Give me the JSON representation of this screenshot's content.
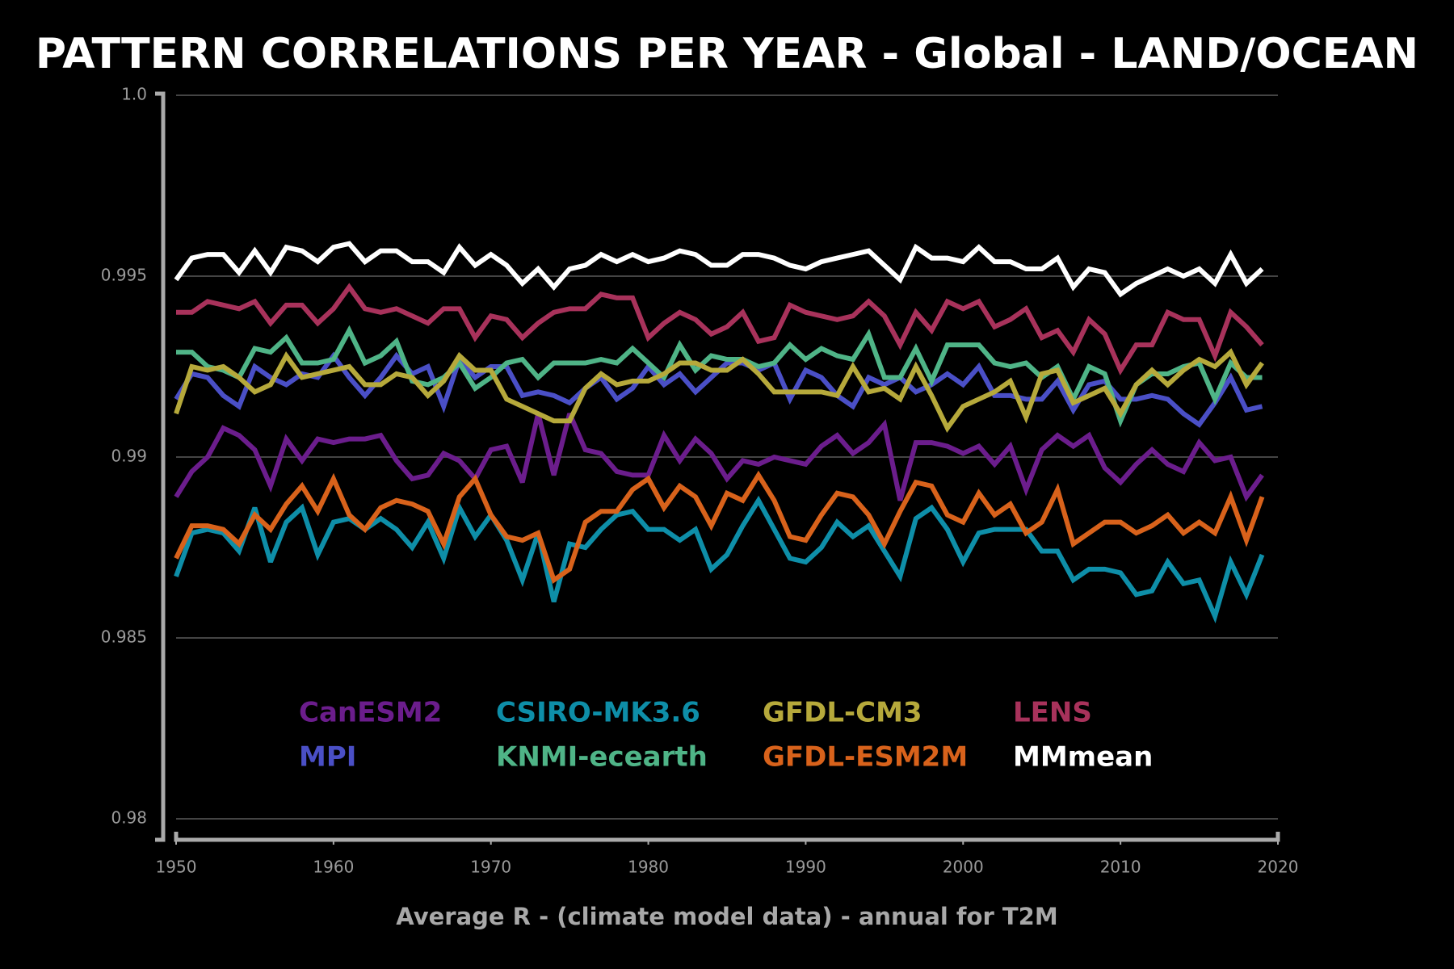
{
  "chart_data": {
    "type": "line",
    "title": "PATTERN CORRELATIONS PER YEAR - Global - LAND/OCEAN",
    "xlabel": "Average R - (climate model data) - annual for T2M",
    "x": [
      1950,
      1951,
      1952,
      1953,
      1954,
      1955,
      1956,
      1957,
      1958,
      1959,
      1960,
      1961,
      1962,
      1963,
      1964,
      1965,
      1966,
      1967,
      1968,
      1969,
      1970,
      1971,
      1972,
      1973,
      1974,
      1975,
      1976,
      1977,
      1978,
      1979,
      1980,
      1981,
      1982,
      1983,
      1984,
      1985,
      1986,
      1987,
      1988,
      1989,
      1990,
      1991,
      1992,
      1993,
      1994,
      1995,
      1996,
      1997,
      1998,
      1999,
      2000,
      2001,
      2002,
      2003,
      2004,
      2005,
      2006,
      2007,
      2008,
      2009,
      2010,
      2011,
      2012,
      2013,
      2014,
      2015,
      2016,
      2017,
      2018,
      2019
    ],
    "xlim": [
      1950,
      2020
    ],
    "xticks": [
      1950,
      1960,
      1970,
      1980,
      1990,
      2000,
      2010,
      2020
    ],
    "ylim": [
      0.98,
      1.0
    ],
    "yticks": [
      0.98,
      0.985,
      0.99,
      0.995,
      {
        "value": 1,
        "label": "1.0"
      }
    ],
    "grid": true,
    "series": [
      {
        "name": "CanESM2",
        "color": "#6b1d8c",
        "values": [
          0.9889,
          0.9896,
          0.99,
          0.9908,
          0.9906,
          0.9902,
          0.9892,
          0.9905,
          0.9899,
          0.9905,
          0.9904,
          0.9905,
          0.9905,
          0.9906,
          0.9899,
          0.9894,
          0.9895,
          0.9901,
          0.9899,
          0.9894,
          0.9902,
          0.9903,
          0.9893,
          0.9912,
          0.9895,
          0.9912,
          0.9902,
          0.9901,
          0.9896,
          0.9895,
          0.9895,
          0.9906,
          0.9899,
          0.9905,
          0.9901,
          0.9894,
          0.9899,
          0.9898,
          0.99,
          0.9899,
          0.9898,
          0.9903,
          0.9906,
          0.9901,
          0.9904,
          0.9909,
          0.9888,
          0.9904,
          0.9904,
          0.9903,
          0.9901,
          0.9903,
          0.9898,
          0.9903,
          0.9891,
          0.9902,
          0.9906,
          0.9903,
          0.9906,
          0.9897,
          0.9893,
          0.9898,
          0.9902,
          0.9898,
          0.9896,
          0.9904,
          0.9899,
          0.99,
          0.9889,
          0.9895
        ]
      },
      {
        "name": "MPI",
        "color": "#4a4fc6",
        "values": [
          0.9916,
          0.9923,
          0.9922,
          0.9917,
          0.9914,
          0.9925,
          0.9922,
          0.992,
          0.9923,
          0.9922,
          0.9928,
          0.9922,
          0.9917,
          0.9922,
          0.9928,
          0.9923,
          0.9925,
          0.9914,
          0.9927,
          0.9922,
          0.9925,
          0.9925,
          0.9917,
          0.9918,
          0.9917,
          0.9915,
          0.9919,
          0.9922,
          0.9916,
          0.9919,
          0.9925,
          0.992,
          0.9923,
          0.9918,
          0.9922,
          0.9926,
          0.9926,
          0.9924,
          0.9926,
          0.9916,
          0.9924,
          0.9922,
          0.9917,
          0.9914,
          0.9922,
          0.992,
          0.9922,
          0.9918,
          0.992,
          0.9923,
          0.992,
          0.9925,
          0.9917,
          0.9917,
          0.9916,
          0.9916,
          0.9921,
          0.9913,
          0.992,
          0.9921,
          0.9916,
          0.9916,
          0.9917,
          0.9916,
          0.9912,
          0.9909,
          0.9915,
          0.9922,
          0.9913,
          0.9914
        ]
      },
      {
        "name": "CSIRO-MK3.6",
        "color": "#0e8ea8",
        "values": [
          0.9867,
          0.9879,
          0.988,
          0.9879,
          0.9874,
          0.9886,
          0.9871,
          0.9882,
          0.9886,
          0.9873,
          0.9882,
          0.9883,
          0.988,
          0.9883,
          0.988,
          0.9875,
          0.9882,
          0.9872,
          0.9886,
          0.9878,
          0.9884,
          0.9877,
          0.9866,
          0.9879,
          0.986,
          0.9876,
          0.9875,
          0.988,
          0.9884,
          0.9885,
          0.988,
          0.988,
          0.9877,
          0.988,
          0.9869,
          0.9873,
          0.9881,
          0.9888,
          0.988,
          0.9872,
          0.9871,
          0.9875,
          0.9882,
          0.9878,
          0.9881,
          0.9874,
          0.9867,
          0.9883,
          0.9886,
          0.988,
          0.9871,
          0.9879,
          0.988,
          0.988,
          0.988,
          0.9874,
          0.9874,
          0.9866,
          0.9869,
          0.9869,
          0.9868,
          0.9862,
          0.9863,
          0.9871,
          0.9865,
          0.9866,
          0.9856,
          0.9871,
          0.9862,
          0.9873
        ]
      },
      {
        "name": "KNMI-ecearth",
        "color": "#4fb487",
        "values": [
          0.9929,
          0.9929,
          0.9925,
          0.9924,
          0.9922,
          0.993,
          0.9929,
          0.9933,
          0.9926,
          0.9926,
          0.9927,
          0.9935,
          0.9926,
          0.9928,
          0.9932,
          0.9921,
          0.992,
          0.9922,
          0.9926,
          0.9919,
          0.9922,
          0.9926,
          0.9927,
          0.9922,
          0.9926,
          0.9926,
          0.9926,
          0.9927,
          0.9926,
          0.993,
          0.9926,
          0.9922,
          0.9931,
          0.9924,
          0.9928,
          0.9927,
          0.9927,
          0.9925,
          0.9926,
          0.9931,
          0.9927,
          0.993,
          0.9928,
          0.9927,
          0.9934,
          0.9922,
          0.9922,
          0.993,
          0.9921,
          0.9931,
          0.9931,
          0.9931,
          0.9926,
          0.9925,
          0.9926,
          0.9922,
          0.9925,
          0.9916,
          0.9925,
          0.9923,
          0.991,
          0.992,
          0.9923,
          0.9923,
          0.9925,
          0.9926,
          0.9916,
          0.9926,
          0.9922,
          0.9922
        ]
      },
      {
        "name": "GFDL-CM3",
        "color": "#b6a93b",
        "values": [
          0.9912,
          0.9925,
          0.9924,
          0.9925,
          0.9922,
          0.9918,
          0.992,
          0.9928,
          0.9922,
          0.9923,
          0.9924,
          0.9925,
          0.992,
          0.992,
          0.9923,
          0.9922,
          0.9917,
          0.9921,
          0.9928,
          0.9924,
          0.9924,
          0.9916,
          0.9914,
          0.9912,
          0.991,
          0.991,
          0.9919,
          0.9923,
          0.992,
          0.9921,
          0.9921,
          0.9923,
          0.9926,
          0.9926,
          0.9924,
          0.9924,
          0.9927,
          0.9923,
          0.9918,
          0.9918,
          0.9918,
          0.9918,
          0.9917,
          0.9925,
          0.9918,
          0.9919,
          0.9916,
          0.9925,
          0.9917,
          0.9908,
          0.9914,
          0.9916,
          0.9918,
          0.9921,
          0.9911,
          0.9923,
          0.9924,
          0.9915,
          0.9917,
          0.9919,
          0.9912,
          0.992,
          0.9924,
          0.992,
          0.9924,
          0.9927,
          0.9925,
          0.9929,
          0.992,
          0.9926
        ]
      },
      {
        "name": "GFDL-ESM2M",
        "color": "#d8621b",
        "values": [
          0.9872,
          0.9881,
          0.9881,
          0.988,
          0.9876,
          0.9884,
          0.988,
          0.9887,
          0.9892,
          0.9885,
          0.9894,
          0.9884,
          0.988,
          0.9886,
          0.9888,
          0.9887,
          0.9885,
          0.9876,
          0.9889,
          0.9894,
          0.9884,
          0.9878,
          0.9877,
          0.9879,
          0.9866,
          0.9869,
          0.9882,
          0.9885,
          0.9885,
          0.9891,
          0.9894,
          0.9886,
          0.9892,
          0.9889,
          0.9881,
          0.989,
          0.9888,
          0.9895,
          0.9888,
          0.9878,
          0.9877,
          0.9884,
          0.989,
          0.9889,
          0.9884,
          0.9876,
          0.9885,
          0.9893,
          0.9892,
          0.9884,
          0.9882,
          0.989,
          0.9884,
          0.9887,
          0.9879,
          0.9882,
          0.9891,
          0.9876,
          0.9879,
          0.9882,
          0.9882,
          0.9879,
          0.9881,
          0.9884,
          0.9879,
          0.9882,
          0.9879,
          0.9889,
          0.9877,
          0.9889
        ]
      },
      {
        "name": "LENS",
        "color": "#a8325b",
        "values": [
          0.994,
          0.994,
          0.9943,
          0.9942,
          0.9941,
          0.9943,
          0.9937,
          0.9942,
          0.9942,
          0.9937,
          0.9941,
          0.9947,
          0.9941,
          0.994,
          0.9941,
          0.9939,
          0.9937,
          0.9941,
          0.9941,
          0.9933,
          0.9939,
          0.9938,
          0.9933,
          0.9937,
          0.994,
          0.9941,
          0.9941,
          0.9945,
          0.9944,
          0.9944,
          0.9933,
          0.9937,
          0.994,
          0.9938,
          0.9934,
          0.9936,
          0.994,
          0.9932,
          0.9933,
          0.9942,
          0.994,
          0.9939,
          0.9938,
          0.9939,
          0.9943,
          0.9939,
          0.9931,
          0.994,
          0.9935,
          0.9943,
          0.9941,
          0.9943,
          0.9936,
          0.9938,
          0.9941,
          0.9933,
          0.9935,
          0.9929,
          0.9938,
          0.9934,
          0.9924,
          0.9931,
          0.9931,
          0.994,
          0.9938,
          0.9938,
          0.9928,
          0.994,
          0.9936,
          0.9931
        ]
      },
      {
        "name": "MMmean",
        "color": "#ffffff",
        "values": [
          0.9949,
          0.9955,
          0.9956,
          0.9956,
          0.9951,
          0.9957,
          0.9951,
          0.9958,
          0.9957,
          0.9954,
          0.9958,
          0.9959,
          0.9954,
          0.9957,
          0.9957,
          0.9954,
          0.9954,
          0.9951,
          0.9958,
          0.9953,
          0.9956,
          0.9953,
          0.9948,
          0.9952,
          0.9947,
          0.9952,
          0.9953,
          0.9956,
          0.9954,
          0.9956,
          0.9954,
          0.9955,
          0.9957,
          0.9956,
          0.9953,
          0.9953,
          0.9956,
          0.9956,
          0.9955,
          0.9953,
          0.9952,
          0.9954,
          0.9955,
          0.9956,
          0.9957,
          0.9953,
          0.9949,
          0.9958,
          0.9955,
          0.9955,
          0.9954,
          0.9958,
          0.9954,
          0.9954,
          0.9952,
          0.9952,
          0.9955,
          0.9947,
          0.9952,
          0.9951,
          0.9945,
          0.9948,
          0.995,
          0.9952,
          0.995,
          0.9952,
          0.9948,
          0.9956,
          0.9948,
          0.9952
        ]
      }
    ]
  }
}
